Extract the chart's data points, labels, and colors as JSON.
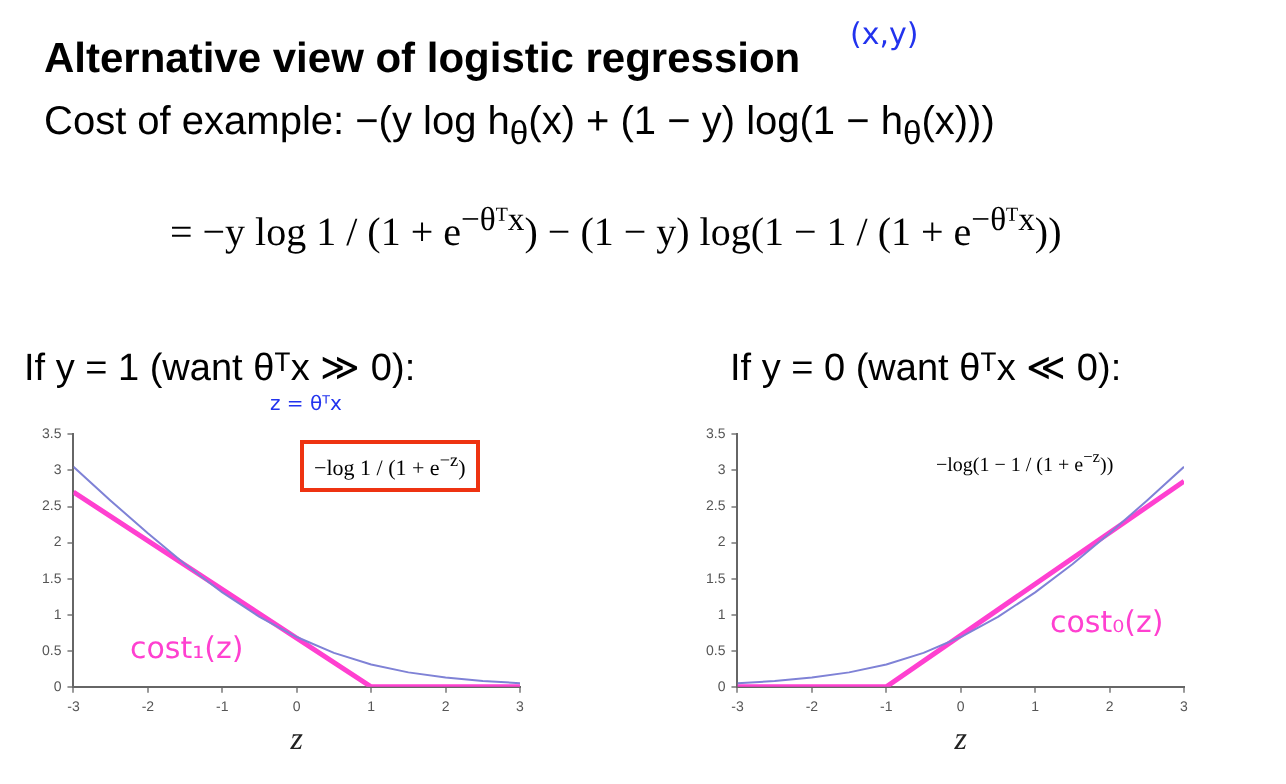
{
  "chart_data": [
    {
      "type": "line",
      "title": "Alternative view of logistic regression",
      "subtitle": "If y = 1 (want θᵀx ≫ 0):",
      "xlabel": "z",
      "xlim": [
        -3,
        3
      ],
      "xticks": [
        -3,
        -2,
        -1,
        0,
        1,
        2,
        3
      ],
      "ylim": [
        0,
        3.5
      ],
      "yticks": [
        0,
        0.5,
        1,
        1.5,
        2,
        2.5,
        3,
        3.5
      ],
      "grid": false,
      "legend": false,
      "marker": "none",
      "series": [
        {
          "color": "#7f82d6",
          "x": [
            -3,
            -2.5,
            -2,
            -1.5,
            -1,
            -0.5,
            0,
            0.5,
            1,
            1.5,
            2,
            2.5,
            3
          ],
          "values": [
            3.05,
            2.58,
            2.13,
            1.7,
            1.31,
            0.97,
            0.69,
            0.47,
            0.31,
            0.2,
            0.13,
            0.08,
            0.05
          ]
        },
        {
          "color": "#ff40d0",
          "x": [
            -3,
            1,
            3
          ],
          "values": [
            2.7,
            0,
            0
          ]
        }
      ],
      "annotations": [
        "Cost of example: −(y log h$_{θ}$(x) + (1 − y) log(1 − h$_{θ}$(x)))",
        "= −y log 1 / (1 + e$^{−θᵀx}$) − (1 − y) log(1 − 1 / (1 + e$^{−θᵀx}$))",
        "(x,y)",
        "z = θᵀx",
        "−log 1 / (1 + e$^{−z}$)",
        "cost₁(z)"
      ]
    },
    {
      "type": "line",
      "subtitle": "If y = 0 (want θᵀx ≪ 0):",
      "xlabel": "z",
      "xlim": [
        -3,
        3
      ],
      "xticks": [
        -3,
        -2,
        -1,
        0,
        1,
        2,
        3
      ],
      "ylim": [
        0,
        3.5
      ],
      "yticks": [
        0,
        0.5,
        1,
        1.5,
        2,
        2.5,
        3,
        3.5
      ],
      "grid": false,
      "legend": false,
      "marker": "none",
      "series": [
        {
          "color": "#7f82d6",
          "x": [
            -3,
            -2.5,
            -2,
            -1.5,
            -1,
            -0.5,
            0,
            0.5,
            1,
            1.5,
            2,
            2.5,
            3
          ],
          "values": [
            0.05,
            0.08,
            0.13,
            0.2,
            0.31,
            0.47,
            0.69,
            0.97,
            1.31,
            1.7,
            2.13,
            2.58,
            3.05
          ]
        },
        {
          "color": "#ff40d0",
          "x": [
            -3,
            -1,
            3
          ],
          "values": [
            0,
            0,
            2.85
          ]
        }
      ],
      "annotations": [
        "−log(1 − 1 / (1 + e$^{−z}$))",
        "cost₀(z)"
      ]
    }
  ]
}
